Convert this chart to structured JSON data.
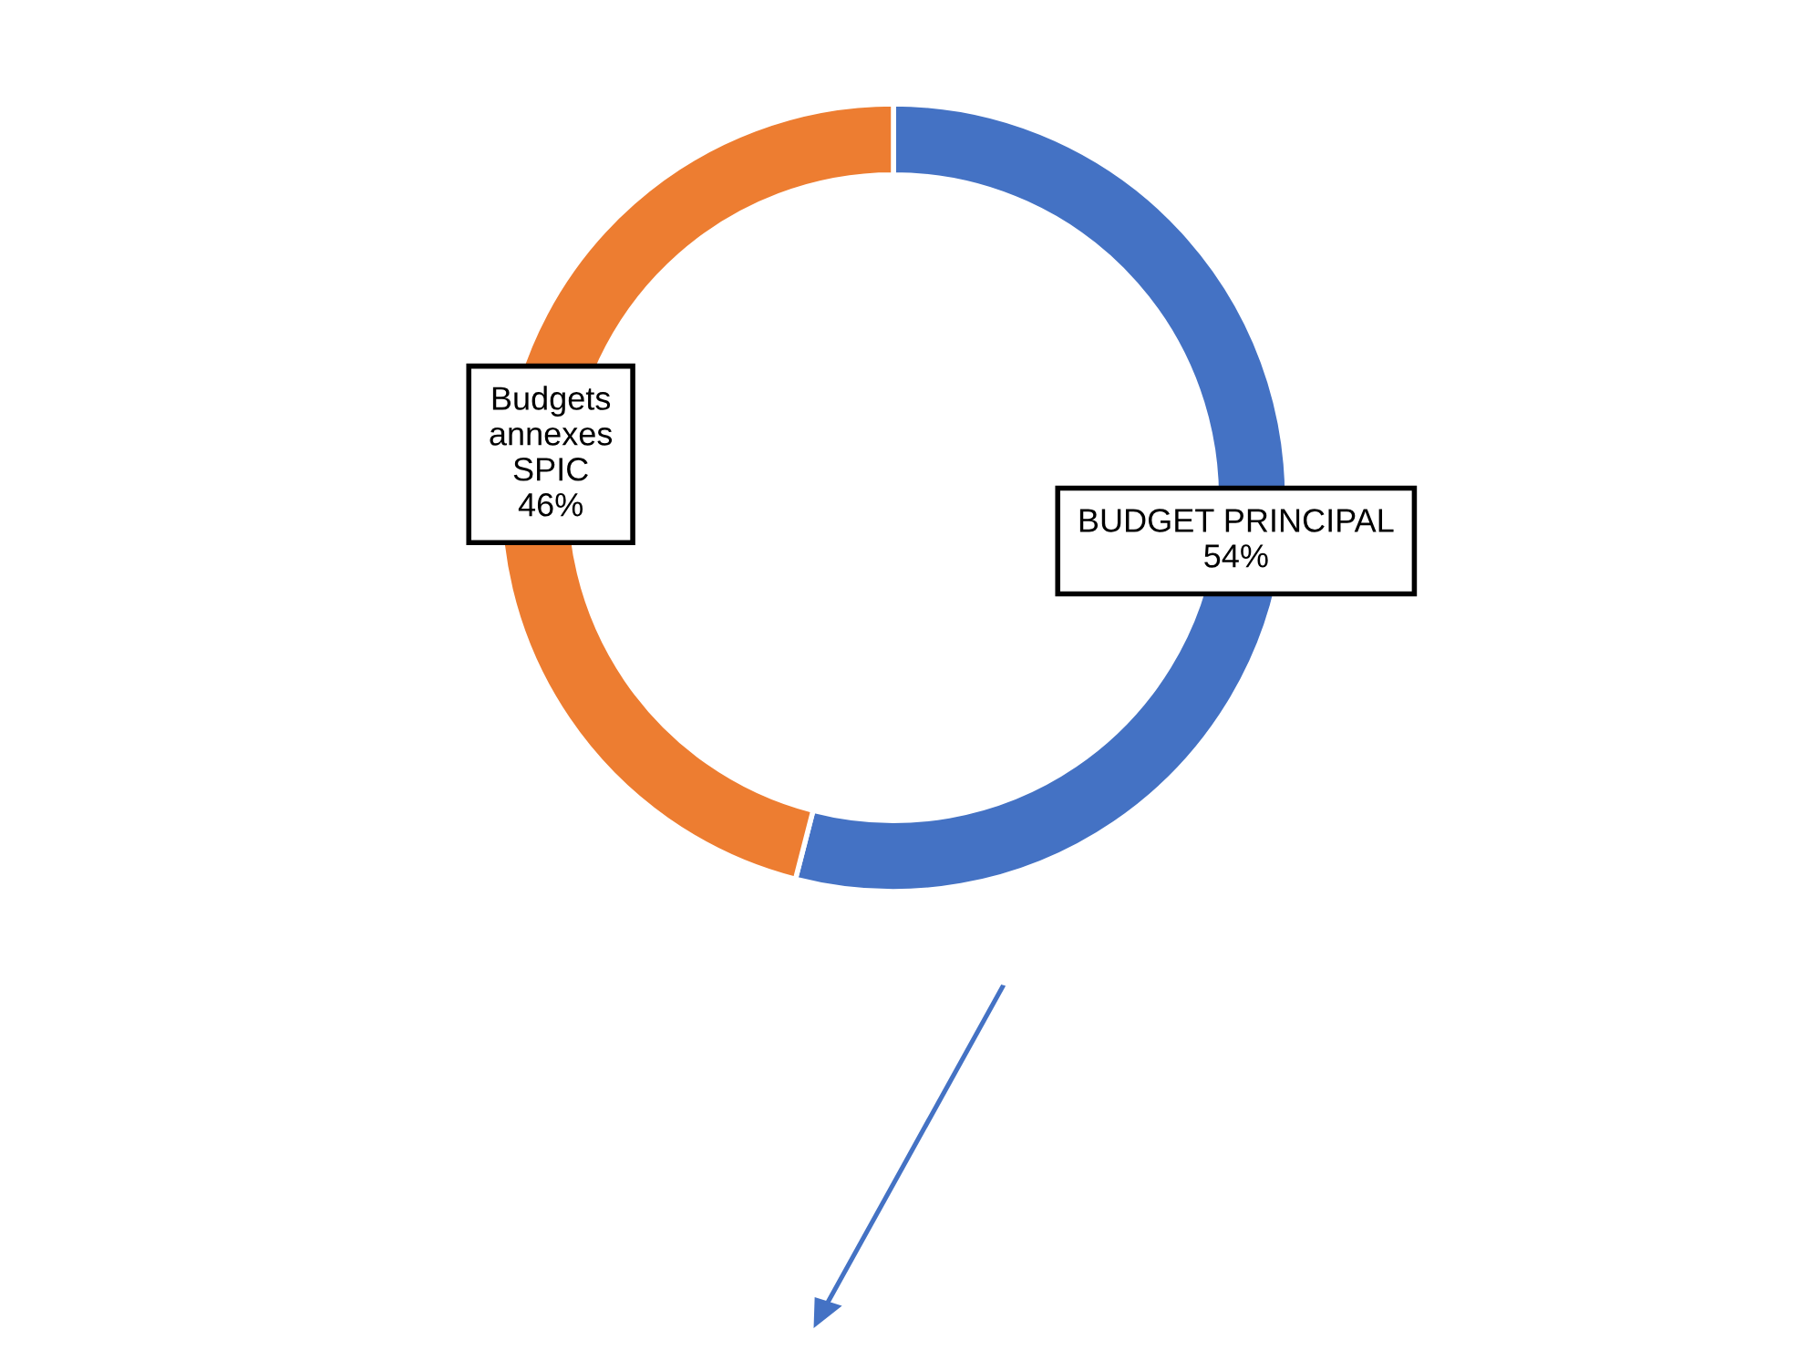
{
  "chart_data": {
    "type": "donut",
    "categories": [
      "BUDGET PRINCIPAL",
      "Budgets\nannexes\nSPIC"
    ],
    "values": [
      54,
      46
    ],
    "colors": [
      "#4472c4",
      "#ed7d31"
    ],
    "value_labels": [
      "54%",
      "46%"
    ]
  }
}
